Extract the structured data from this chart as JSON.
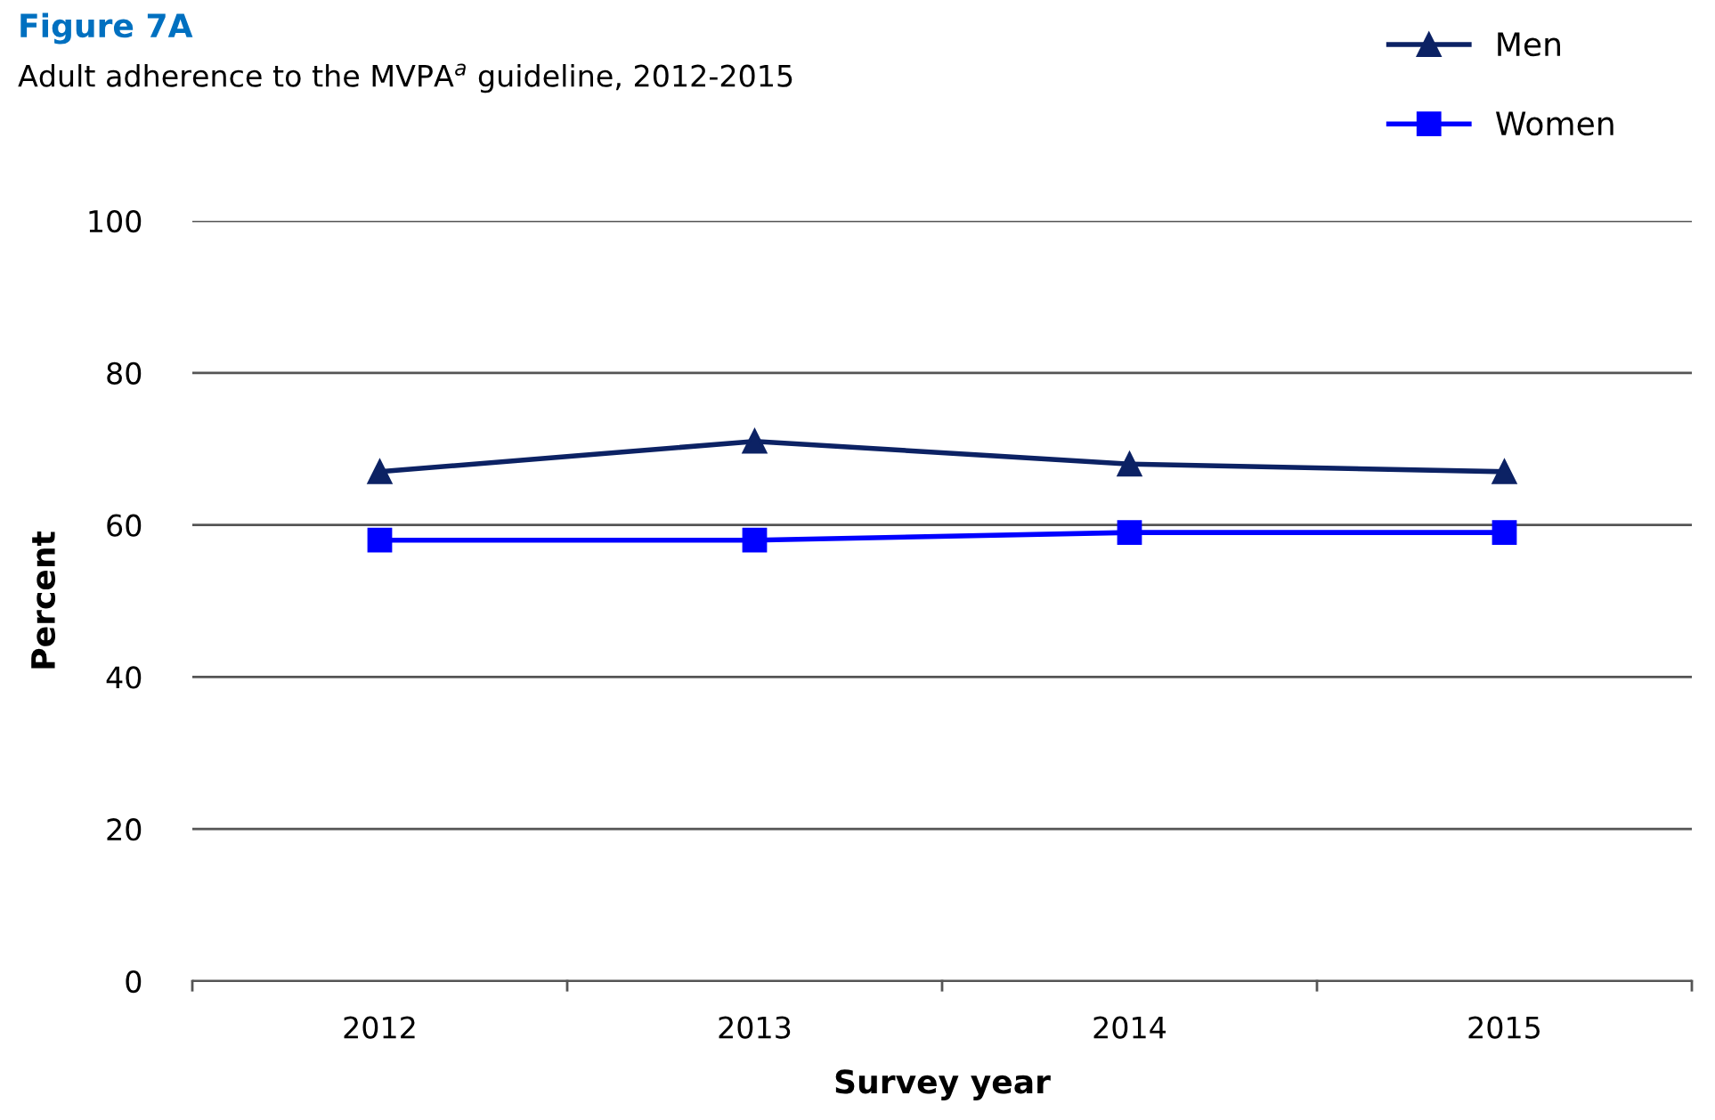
{
  "chart_data": {
    "type": "line",
    "title": "Figure 7A",
    "subtitle": "Adult adherence to the MVPA$^{a}$ guideline, 2012-2015",
    "xlabel": "Survey year",
    "ylabel": "Percent",
    "categories": [
      "2012",
      "2013",
      "2014",
      "2015"
    ],
    "series": [
      {
        "name": "Men",
        "color": "#0c2264",
        "marker": "triangle",
        "values": [
          67,
          71,
          68,
          67
        ]
      },
      {
        "name": "Women",
        "color": "#0000ff",
        "marker": "square",
        "values": [
          58,
          58,
          59,
          59
        ]
      }
    ],
    "ylim": [
      0,
      100
    ],
    "yticks": [
      0,
      20,
      40,
      60,
      80,
      100
    ],
    "grid": "y",
    "legend": "top right",
    "line_style": "solid"
  }
}
